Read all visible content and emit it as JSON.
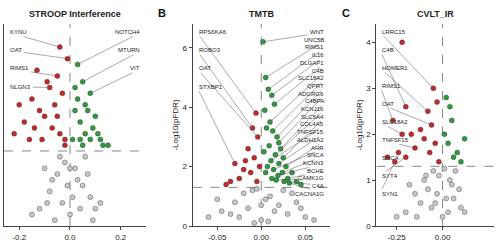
{
  "chart_data": [
    {
      "type": "scatter",
      "title": "STROOP Interference",
      "grid": false,
      "tick_labels": "x",
      "xlim": [
        -0.26,
        0.3
      ],
      "xticks": [
        -0.2,
        {
          "value": 0,
          "label": "0.0"
        },
        0.2
      ],
      "ylim": [
        0,
        3.5
      ],
      "hline": 1.3,
      "vline": 0,
      "series": [
        {
          "color": "#c8c8c8",
          "x": [
            -0.12,
            -0.08,
            -0.05,
            -0.02,
            0.0,
            0.02,
            0.05,
            0.08,
            0.1,
            -0.15,
            -0.1,
            -0.03,
            0.03,
            0.06,
            0.12,
            -0.06,
            -0.01,
            0.01,
            0.04,
            -0.04,
            0.07,
            -0.09,
            0.09,
            -0.07,
            0.0
          ],
          "y": [
            0.3,
            0.6,
            0.9,
            1.1,
            0.2,
            1.0,
            0.7,
            0.5,
            0.3,
            0.2,
            1.0,
            0.4,
            0.8,
            1.2,
            0.4,
            0.1,
            0.7,
            0.5,
            0.3,
            1.2,
            0.9,
            0.4,
            0.1,
            0.8,
            1.0
          ]
        },
        {
          "color": "#c62828",
          "x": [
            -0.02,
            -0.04,
            -0.05,
            -0.08,
            -0.01,
            -0.12,
            -0.18,
            -0.22,
            -0.15,
            -0.1,
            -0.06,
            -0.03,
            -0.07,
            -0.09,
            -0.11,
            -0.14,
            -0.05,
            -0.02,
            -0.16,
            -0.2,
            -0.13,
            -0.04
          ],
          "y": [
            1.5,
            3.1,
            2.6,
            2.4,
            2.9,
            2.0,
            1.8,
            1.6,
            2.2,
            1.9,
            2.1,
            2.3,
            1.7,
            2.5,
            1.5,
            1.7,
            1.9,
            1.4,
            1.5,
            2.1,
            2.7,
            1.6
          ]
        },
        {
          "color": "#2e9b3e",
          "x": [
            0.03,
            0.05,
            0.08,
            0.02,
            0.04,
            0.06,
            0.1,
            0.12,
            0.15,
            0.01,
            0.03,
            0.07,
            0.09,
            0.02,
            0.05,
            0.11,
            0.04,
            0.13,
            0.06,
            0.08
          ],
          "y": [
            2.8,
            2.5,
            2.3,
            2.0,
            1.8,
            1.6,
            1.9,
            1.5,
            1.4,
            1.5,
            2.2,
            2.0,
            1.7,
            2.4,
            1.4,
            1.6,
            1.5,
            1.4,
            2.1,
            1.5
          ]
        }
      ],
      "annotations": [
        {
          "text": "KYNU",
          "x": -0.04,
          "y": 3.1
        },
        {
          "text": "OAT",
          "x": -0.01,
          "y": 2.9
        },
        {
          "text": "RIMS1",
          "x": -0.05,
          "y": 2.6
        },
        {
          "text": "NLGN3",
          "x": -0.08,
          "y": 2.4
        },
        {
          "text": "NOTCH4",
          "x": 0.03,
          "y": 2.8
        },
        {
          "text": "MTURN",
          "x": 0.05,
          "y": 2.5
        },
        {
          "text": "VIT",
          "x": 0.08,
          "y": 2.3
        }
      ]
    },
    {
      "type": "scatter",
      "label": "B",
      "title": "TMTB",
      "ylabel": "-Log10(pFDR)",
      "grid": false,
      "xlim": [
        -0.078,
        0.078
      ],
      "xticks": [
        -0.05,
        {
          "value": 0,
          "label": "0.00"
        },
        0.05
      ],
      "ylim": [
        0,
        6.8
      ],
      "yticks": [
        0,
        2,
        4,
        6
      ],
      "hline": 1.3,
      "vline": 0,
      "series": [
        {
          "color": "#c8c8c8",
          "x": [
            -0.06,
            -0.045,
            -0.03,
            -0.02,
            -0.01,
            0.0,
            0.01,
            0.02,
            0.03,
            0.045,
            0.06,
            -0.05,
            -0.025,
            -0.005,
            0.005,
            0.015,
            0.035,
            0.05,
            -0.015,
            0.025,
            -0.035,
            0.04,
            -0.008,
            0.008,
            0.0
          ],
          "y": [
            0.3,
            0.5,
            0.8,
            1.1,
            1.2,
            0.2,
            1.0,
            0.7,
            0.4,
            0.6,
            0.2,
            0.9,
            0.3,
            1.25,
            0.9,
            0.5,
            1.1,
            0.3,
            0.6,
            1.2,
            0.4,
            0.8,
            0.1,
            0.15,
            0.7
          ]
        },
        {
          "color": "#c62828",
          "x": [
            -0.006,
            -0.01,
            -0.004,
            -0.03,
            -0.015,
            -0.02,
            -0.008,
            -0.025,
            -0.012,
            -0.035,
            -0.005,
            -0.018,
            -0.04,
            -0.002
          ],
          "y": [
            3.8,
            3.3,
            3.0,
            2.1,
            2.6,
            1.9,
            2.3,
            1.6,
            1.8,
            1.5,
            1.5,
            2.2,
            1.4,
            2.0
          ]
        },
        {
          "color": "#2e9b3e",
          "x": [
            0.002,
            0.005,
            0.008,
            0.012,
            0.015,
            0.01,
            0.013,
            0.018,
            0.02,
            0.022,
            0.016,
            0.025,
            0.011,
            0.02,
            0.028,
            0.014,
            0.024,
            0.019,
            0.03,
            0.017,
            0.026,
            0.032,
            0.004,
            0.006,
            0.009,
            0.035,
            0.04,
            0.003,
            0.007,
            0.045,
            0.012,
            0.005
          ],
          "y": [
            6.2,
            5.0,
            4.6,
            4.4,
            4.1,
            3.5,
            3.2,
            3.0,
            2.8,
            2.6,
            2.4,
            2.3,
            2.2,
            2.1,
            2.0,
            1.9,
            1.8,
            1.7,
            1.6,
            1.55,
            1.5,
            1.45,
            3.9,
            3.3,
            2.7,
            1.8,
            1.5,
            2.5,
            2.0,
            1.4,
            1.6,
            1.8
          ]
        }
      ],
      "annotations": [
        {
          "text": "WNT",
          "x": 0.002,
          "y": 6.2
        },
        {
          "text": "UNC5B",
          "x": 0.005,
          "y": 5.0
        },
        {
          "text": "RIMS1",
          "x": 0.008,
          "y": 4.6
        },
        {
          "text": "IL16",
          "x": 0.012,
          "y": 4.4
        },
        {
          "text": "DLGAP1",
          "x": 0.015,
          "y": 4.1
        },
        {
          "text": "C4B",
          "x": 0.01,
          "y": 3.5
        },
        {
          "text": "SLC18A2",
          "x": 0.013,
          "y": 3.2
        },
        {
          "text": "QPRT",
          "x": 0.018,
          "y": 3.0
        },
        {
          "text": "ADGRG6",
          "x": 0.02,
          "y": 2.8
        },
        {
          "text": "C4BPA",
          "x": 0.022,
          "y": 2.6
        },
        {
          "text": "KCNJ16",
          "x": 0.016,
          "y": 2.4
        },
        {
          "text": "SLC6A4",
          "x": 0.025,
          "y": 2.3
        },
        {
          "text": "COL4A5",
          "x": 0.011,
          "y": 2.2
        },
        {
          "text": "TNFSF15",
          "x": 0.02,
          "y": 2.1
        },
        {
          "text": "ALDH1A2",
          "x": 0.028,
          "y": 2.0
        },
        {
          "text": "AHR",
          "x": 0.014,
          "y": 1.9
        },
        {
          "text": "SNCA",
          "x": 0.024,
          "y": 1.8
        },
        {
          "text": "KCNN3",
          "x": 0.019,
          "y": 1.7
        },
        {
          "text": "BCHE",
          "x": 0.03,
          "y": 1.6
        },
        {
          "text": "CAMK1G",
          "x": 0.017,
          "y": 1.55
        },
        {
          "text": "C4A",
          "x": 0.026,
          "y": 1.5
        },
        {
          "text": "CACNA1G",
          "x": 0.032,
          "y": 1.45
        },
        {
          "text": "RPS6KA6",
          "x": -0.006,
          "y": 3.8
        },
        {
          "text": "ROBO3",
          "x": -0.01,
          "y": 3.3
        },
        {
          "text": "OAT",
          "x": -0.004,
          "y": 3.0
        },
        {
          "text": "STXBP1",
          "x": -0.03,
          "y": 2.1
        }
      ]
    },
    {
      "type": "scatter",
      "label": "C",
      "title": "CVLT_IR",
      "ylabel": "-Log10(pFDR)",
      "grid": false,
      "xlim": [
        -0.36,
        0.28
      ],
      "xticks": [
        -0.25,
        {
          "value": 0,
          "label": "0.00"
        }
      ],
      "ylim": [
        0,
        4.4
      ],
      "yticks": [
        0,
        1,
        2,
        3,
        4
      ],
      "hline": 1.3,
      "vline": 0,
      "series": [
        {
          "color": "#c8c8c8",
          "x": [
            -0.2,
            -0.15,
            -0.1,
            -0.05,
            0.0,
            0.05,
            0.1,
            -0.25,
            -0.12,
            -0.08,
            -0.02,
            0.02,
            0.07,
            0.12,
            -0.18,
            -0.06,
            0.04,
            -0.03,
            0.09,
            -0.14,
            0.01,
            -0.09,
            0.03,
            -0.04,
            0.06
          ],
          "y": [
            0.3,
            0.7,
            1.0,
            1.2,
            0.2,
            0.9,
            0.4,
            0.2,
            0.5,
            0.8,
            1.1,
            0.6,
            1.2,
            0.3,
            0.9,
            0.4,
            1.0,
            0.7,
            0.8,
            0.2,
            1.25,
            1.1,
            0.3,
            0.5,
            0.6
          ]
        },
        {
          "color": "#c62828",
          "x": [
            -0.22,
            -0.05,
            -0.2,
            -0.08,
            -0.06,
            -0.27,
            -0.22,
            -0.15,
            -0.24,
            -0.2,
            -0.26,
            -0.1,
            -0.03,
            -0.12,
            -0.3,
            -0.07,
            -0.17,
            -0.02,
            -0.04
          ],
          "y": [
            4.0,
            3.0,
            2.6,
            2.5,
            2.2,
            2.3,
            2.0,
            1.7,
            1.6,
            1.5,
            1.4,
            1.9,
            2.7,
            2.1,
            1.5,
            1.6,
            2.0,
            1.4,
            1.8
          ]
        },
        {
          "color": "#2e9b3e",
          "x": [
            0.02,
            0.05,
            0.03,
            0.08,
            0.01,
            0.06,
            0.04,
            0.1,
            0.12
          ],
          "y": [
            2.8,
            2.3,
            1.8,
            1.6,
            2.0,
            1.5,
            2.6,
            1.4,
            1.9
          ]
        }
      ],
      "annotations": [
        {
          "text": "LRRC15",
          "x": -0.05,
          "y": 3.0
        },
        {
          "text": "C4B",
          "x": -0.2,
          "y": 2.6
        },
        {
          "text": "HOMER1",
          "x": -0.08,
          "y": 2.5
        },
        {
          "text": "OAT",
          "x": -0.06,
          "y": 2.2
        },
        {
          "text": "RIMS1",
          "x": -0.27,
          "y": 2.3
        },
        {
          "text": "SLC18A2",
          "x": -0.22,
          "y": 2.0
        },
        {
          "text": "TNFSF15",
          "x": -0.15,
          "y": 1.7
        },
        {
          "text": "SNCA",
          "x": -0.24,
          "y": 1.6
        },
        {
          "text": "SYT4",
          "x": -0.2,
          "y": 1.5
        },
        {
          "text": "SYN1",
          "x": -0.26,
          "y": 1.4
        }
      ]
    }
  ]
}
